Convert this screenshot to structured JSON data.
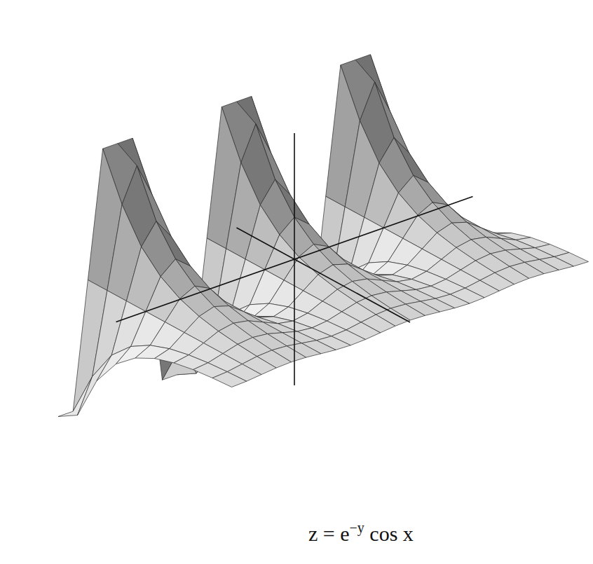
{
  "chart_data": {
    "type": "surface",
    "title": {
      "base": "z = e",
      "superscript": "−y",
      "rest": " cos x"
    },
    "tick_labels": false,
    "xlim": [
      -9.425,
      9.425
    ],
    "ylim": [
      -1.5,
      3
    ],
    "zlim": [
      -3,
      3
    ],
    "x": [
      -9.425,
      -8.639,
      -7.854,
      -7.069,
      -6.283,
      -5.498,
      -4.712,
      -3.927,
      -3.142,
      -2.356,
      -1.571,
      -0.785,
      0,
      0.785,
      1.571,
      2.356,
      3.142,
      3.927,
      4.712,
      5.498,
      6.283,
      7.069,
      7.854,
      8.639,
      9.425
    ],
    "y": [
      -1.5,
      -1,
      -0.5,
      0,
      0.5,
      1,
      1.5,
      2,
      2.5,
      3
    ],
    "z": [
      [
        -4.482,
        -2.718,
        -1.649,
        -1,
        -0.607,
        -0.368,
        -0.223,
        -0.135,
        -0.082,
        -0.05
      ],
      [
        -3.169,
        -1.922,
        -1.166,
        -0.707,
        -0.429,
        -0.26,
        -0.158,
        -0.096,
        -0.058,
        -0.035
      ],
      [
        0,
        0,
        0,
        0,
        0,
        0,
        0,
        0,
        0,
        0
      ],
      [
        3.169,
        1.922,
        1.166,
        0.707,
        0.429,
        0.26,
        0.158,
        0.096,
        0.058,
        0.035
      ],
      [
        4.482,
        2.718,
        1.649,
        1,
        0.607,
        0.368,
        0.223,
        0.135,
        0.082,
        0.05
      ],
      [
        3.169,
        1.922,
        1.166,
        0.707,
        0.429,
        0.26,
        0.158,
        0.096,
        0.058,
        0.035
      ],
      [
        0,
        0,
        0,
        0,
        0,
        0,
        0,
        0,
        0,
        0
      ],
      [
        -3.169,
        -1.922,
        -1.166,
        -0.707,
        -0.429,
        -0.26,
        -0.158,
        -0.096,
        -0.058,
        -0.035
      ],
      [
        -4.482,
        -2.718,
        -1.649,
        -1,
        -0.607,
        -0.368,
        -0.223,
        -0.135,
        -0.082,
        -0.05
      ],
      [
        -3.169,
        -1.922,
        -1.166,
        -0.707,
        -0.429,
        -0.26,
        -0.158,
        -0.096,
        -0.058,
        -0.035
      ],
      [
        0,
        0,
        0,
        0,
        0,
        0,
        0,
        0,
        0,
        0
      ],
      [
        3.169,
        1.922,
        1.166,
        0.707,
        0.429,
        0.26,
        0.158,
        0.096,
        0.058,
        0.035
      ],
      [
        4.482,
        2.718,
        1.649,
        1,
        0.607,
        0.368,
        0.223,
        0.135,
        0.082,
        0.05
      ],
      [
        3.169,
        1.922,
        1.166,
        0.707,
        0.429,
        0.26,
        0.158,
        0.096,
        0.058,
        0.035
      ],
      [
        0,
        0,
        0,
        0,
        0,
        0,
        0,
        0,
        0,
        0
      ],
      [
        -3.169,
        -1.922,
        -1.166,
        -0.707,
        -0.429,
        -0.26,
        -0.158,
        -0.096,
        -0.058,
        -0.035
      ],
      [
        -4.482,
        -2.718,
        -1.649,
        -1,
        -0.607,
        -0.368,
        -0.223,
        -0.135,
        -0.082,
        -0.05
      ],
      [
        -3.169,
        -1.922,
        -1.166,
        -0.707,
        -0.429,
        -0.26,
        -0.158,
        -0.096,
        -0.058,
        -0.035
      ],
      [
        0,
        0,
        0,
        0,
        0,
        0,
        0,
        0,
        0,
        0
      ],
      [
        3.169,
        1.922,
        1.166,
        0.707,
        0.429,
        0.26,
        0.158,
        0.096,
        0.058,
        0.035
      ],
      [
        4.482,
        2.718,
        1.649,
        1,
        0.607,
        0.368,
        0.223,
        0.135,
        0.082,
        0.05
      ],
      [
        3.169,
        1.922,
        1.166,
        0.707,
        0.429,
        0.26,
        0.158,
        0.096,
        0.058,
        0.035
      ],
      [
        0,
        0,
        0,
        0,
        0,
        0,
        0,
        0,
        0,
        0
      ],
      [
        -3.169,
        -1.922,
        -1.166,
        -0.707,
        -0.429,
        -0.26,
        -0.158,
        -0.096,
        -0.058,
        -0.035
      ],
      [
        -4.482,
        -2.718,
        -1.649,
        -1,
        -0.607,
        -0.368,
        -0.223,
        -0.135,
        -0.082,
        -0.05
      ]
    ]
  }
}
